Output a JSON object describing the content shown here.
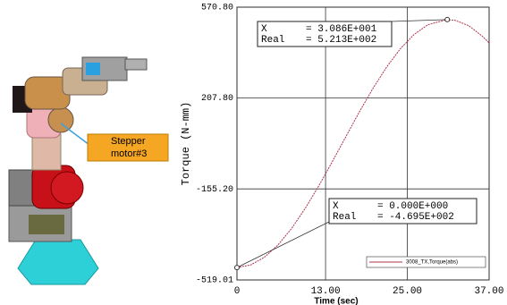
{
  "image_callout": [
    "Stepper",
    "motor#3"
  ],
  "chart_data": {
    "type": "line",
    "xlabel": "Time (sec)",
    "ylabel": "Torque (N-mm)",
    "x": [
      0,
      2,
      4,
      6,
      8,
      10,
      12,
      14,
      16,
      18,
      20,
      22,
      24,
      26,
      28,
      30.86,
      32,
      34,
      36,
      37
    ],
    "series": [
      {
        "name": "3008_TX,Torque(abs)",
        "color": "#b0304a",
        "values": [
          -469.5,
          -459.1,
          -428.9,
          -379.8,
          -314.0,
          -233.7,
          -143.5,
          -45.9,
          54.6,
          154.2,
          248.3,
          333.1,
          405.4,
          461.9,
          500.5,
          521.3,
          518.3,
          497.0,
          454.9,
          427.7
        ]
      }
    ],
    "xlim": [
      0,
      37
    ],
    "ylim": [
      -519.01,
      570.8
    ],
    "xticks": [
      0,
      {
        "value": 13,
        "label": "13.00"
      },
      {
        "value": 25,
        "label": "25.00"
      },
      {
        "value": 37,
        "label": "37.00"
      }
    ],
    "yticks": [
      {
        "value": -519.01,
        "label": "-519.01"
      },
      {
        "value": -155.2,
        "label": "-155.20"
      },
      {
        "value": 207.8,
        "label": "207.80"
      },
      {
        "value": 570.8,
        "label": "570.80"
      }
    ],
    "grid": true,
    "annotations": [
      {
        "x": 30.86,
        "y": 521.3,
        "x_text": "X",
        "x_value": "= 3.086E+001",
        "y_text": "Real",
        "y_value": "= 5.213E+002"
      },
      {
        "x": 0,
        "y": -469.5,
        "x_text": "X",
        "x_value": "= 0.000E+000",
        "y_text": "Real",
        "y_value": "= -4.695E+002"
      }
    ]
  }
}
